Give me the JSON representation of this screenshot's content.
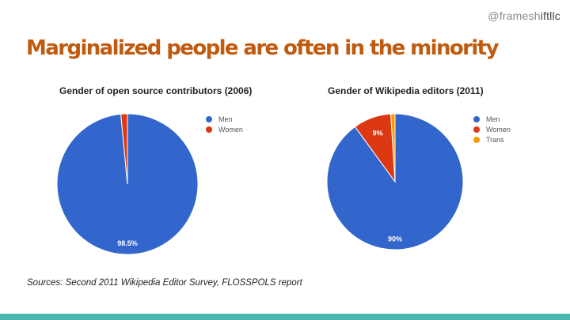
{
  "slide": {
    "handle_part1": "@framesh",
    "handle_part2": "iftllc",
    "title": "Marginalized people are often in the minority",
    "sources": "Sources: Second 2011 Wikipedia Editor Survey, FLOSSPOLS report"
  },
  "colors": {
    "title": "#c05a0e",
    "men": "#3366cc",
    "women": "#dc3912",
    "trans": "#ff9900",
    "bottom_bar": "#4bb8b0"
  },
  "chart_data": [
    {
      "type": "pie",
      "title": "Gender of open source contributors (2006)",
      "legend_position": "right",
      "slices": [
        {
          "label": "Men",
          "value": 98.5,
          "color": "#3366cc",
          "data_label": "98.5%"
        },
        {
          "label": "Women",
          "value": 1.5,
          "color": "#dc3912",
          "data_label": ""
        }
      ]
    },
    {
      "type": "pie",
      "title": "Gender of Wikipedia editors (2011)",
      "legend_position": "right",
      "slices": [
        {
          "label": "Men",
          "value": 90,
          "color": "#3366cc",
          "data_label": "90%"
        },
        {
          "label": "Women",
          "value": 9,
          "color": "#dc3912",
          "data_label": "9%"
        },
        {
          "label": "Trans",
          "value": 1,
          "color": "#ff9900",
          "data_label": ""
        }
      ]
    }
  ]
}
